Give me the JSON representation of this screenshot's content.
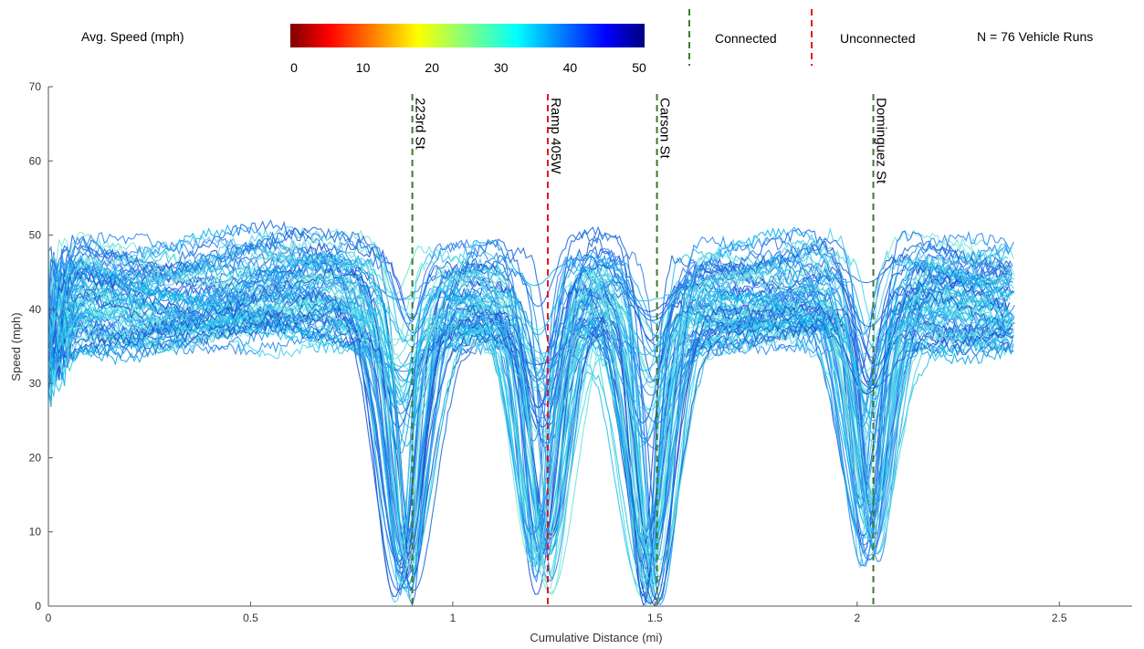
{
  "chart_data": {
    "type": "line",
    "xlabel": "Cumulative Distance (mi)",
    "ylabel": "Speed (mph)",
    "xlim": [
      0,
      2.68
    ],
    "ylim": [
      0,
      70
    ],
    "x_ticks": [
      "0",
      "0.5",
      "1",
      "1.5",
      "2",
      "2.5"
    ],
    "x_tick_values": [
      0,
      0.5,
      1,
      1.5,
      2,
      2.5
    ],
    "y_ticks": [
      "0",
      "10",
      "20",
      "30",
      "40",
      "50",
      "60",
      "70"
    ],
    "y_tick_values": [
      0,
      10,
      20,
      30,
      40,
      50,
      60,
      70
    ],
    "grid": false,
    "run_count_label": "N = 76 Vehicle Runs",
    "run_count": 76,
    "colorbar": {
      "title": "Avg. Speed (mph)",
      "ticks": [
        "0",
        "10",
        "20",
        "30",
        "40",
        "50"
      ],
      "range": [
        0,
        50
      ],
      "colormap": "jet"
    },
    "legend": [
      {
        "label": "Connected",
        "color": "#3d7a2a",
        "style": "dashed"
      },
      {
        "label": "Unconnected",
        "color": "#e8141e",
        "style": "dashed"
      }
    ],
    "intersections": [
      {
        "name": "223rd St",
        "x": 0.9,
        "type": "connected"
      },
      {
        "name": "Ramp 405W",
        "x": 1.235,
        "type": "unconnected"
      },
      {
        "name": "Carson St",
        "x": 1.505,
        "type": "connected"
      },
      {
        "name": "Dominguez St",
        "x": 2.04,
        "type": "connected"
      }
    ],
    "series_profile": {
      "x_range": [
        0,
        2.39
      ],
      "cruise_speed_range": [
        36,
        48
      ],
      "dips": [
        {
          "x": 0.88,
          "min_speed": 0
        },
        {
          "x": 1.22,
          "min_speed": 0
        },
        {
          "x": 1.49,
          "min_speed": 0
        },
        {
          "x": 2.03,
          "min_speed": 5
        }
      ]
    }
  }
}
